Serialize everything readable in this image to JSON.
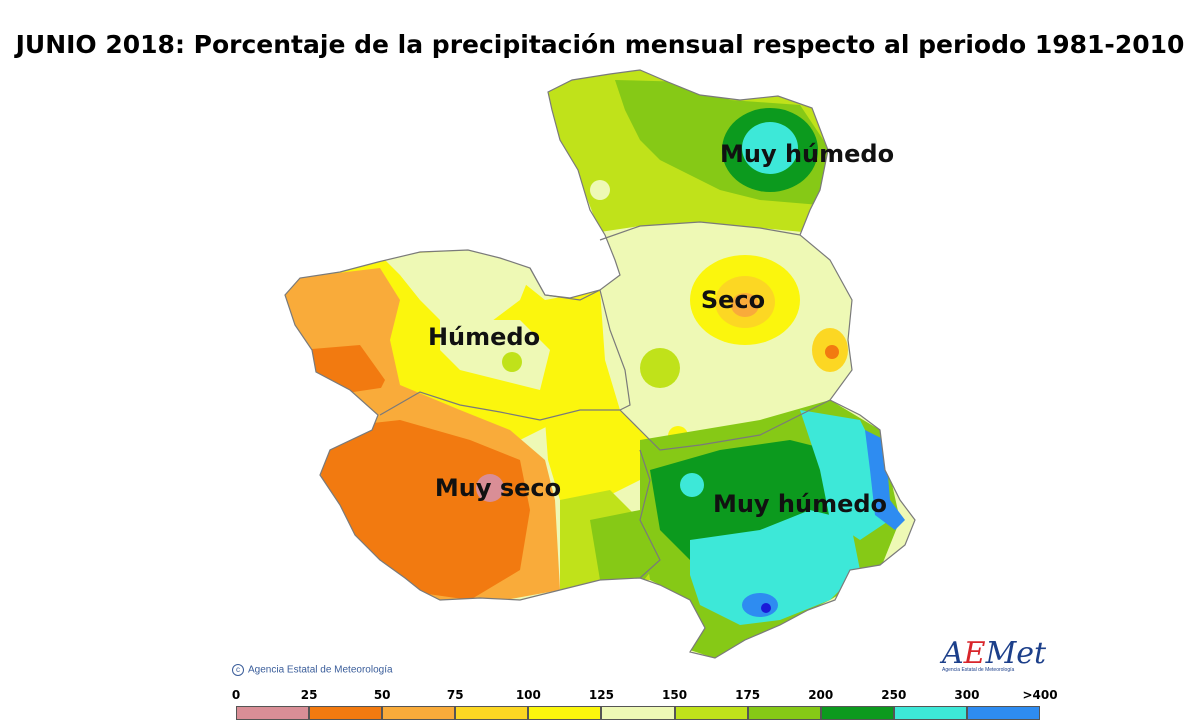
{
  "title": "JUNIO 2018: Porcentaje de la precipitación mensual respecto al periodo 1981-2010",
  "labels": {
    "muy_humedo_north": "Muy húmedo",
    "seco": "Seco",
    "humedo": "Húmedo",
    "muy_seco": "Muy seco",
    "muy_humedo_southeast": "Muy húmedo"
  },
  "credit": "Agencia Estatal de Meteorología",
  "logo": {
    "text_a": "A",
    "text_e": "E",
    "text_rest": "Met",
    "sub": "Agencia Estatal de Meteorología"
  },
  "legend": {
    "ticks": [
      "0",
      "25",
      "50",
      "75",
      "100",
      "125",
      "150",
      "175",
      "200",
      "250",
      "300",
      ">400"
    ],
    "colors": [
      "#d98e96",
      "#f27a10",
      "#f9ab3a",
      "#fcd723",
      "#fbf60d",
      "#eef9b5",
      "#c0e21a",
      "#86c916",
      "#0c9a1e",
      "#3de8d8",
      "#2e8cf1",
      "#1a1ad8"
    ]
  },
  "colors": {
    "muy_seco": "#f27a10",
    "seco": "#fcd723",
    "humedo": "#eef9b5",
    "muy_humedo": "#0c9a1e",
    "border": "#7a7a7a"
  }
}
